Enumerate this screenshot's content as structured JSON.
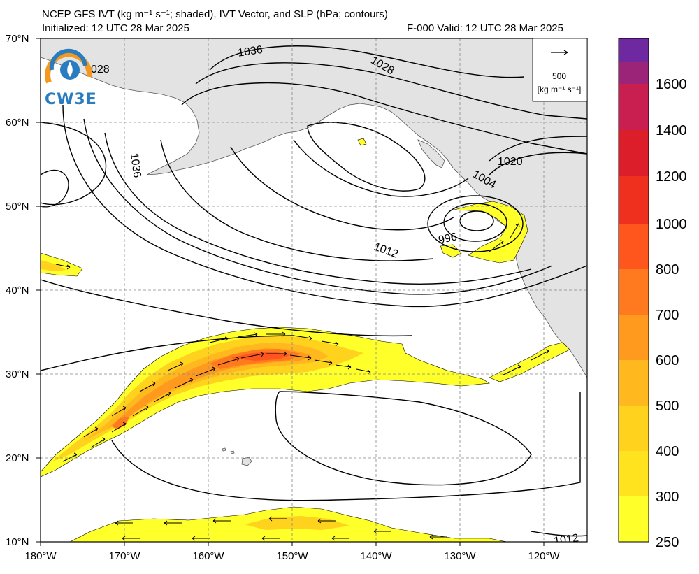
{
  "header": {
    "title": "NCEP GFS IVT (kg m⁻¹ s⁻¹; shaded), IVT Vector, and SLP (hPa; contours)",
    "initialized": "Initialized: 12 UTC 28 Mar 2025",
    "valid": "F-000  Valid: 12 UTC 28 Mar 2025"
  },
  "logo": {
    "text": "CW3E",
    "icon": "cw3e-logo-icon"
  },
  "map": {
    "lat_labels": [
      "70°N",
      "60°N",
      "50°N",
      "40°N",
      "30°N",
      "20°N",
      "10°N"
    ],
    "lon_labels": [
      "180°W",
      "170°W",
      "160°W",
      "150°W",
      "140°W",
      "130°W",
      "120°W"
    ],
    "slp_labels": [
      "1036",
      "028",
      "1036",
      "1028",
      "1020",
      "1004",
      "996",
      "1012",
      "1012"
    ],
    "land_color": "#e3e3e3",
    "ocean_color": "#ffffff"
  },
  "reference_vector": {
    "value": "500",
    "units": "[kg m⁻¹ s⁻¹]"
  },
  "colorbar": {
    "tick_labels": [
      "250",
      "300",
      "400",
      "500",
      "600",
      "700",
      "800",
      "1000",
      "1200",
      "1400",
      "1600"
    ],
    "colors": [
      "#ffff2a",
      "#ffe31e",
      "#ffd21e",
      "#ffb81e",
      "#ff9a1e",
      "#ff7a1e",
      "#ff561e",
      "#f0301e",
      "#dc1e2a",
      "#c81e50",
      "#9b2378",
      "#6e28a0"
    ]
  }
}
